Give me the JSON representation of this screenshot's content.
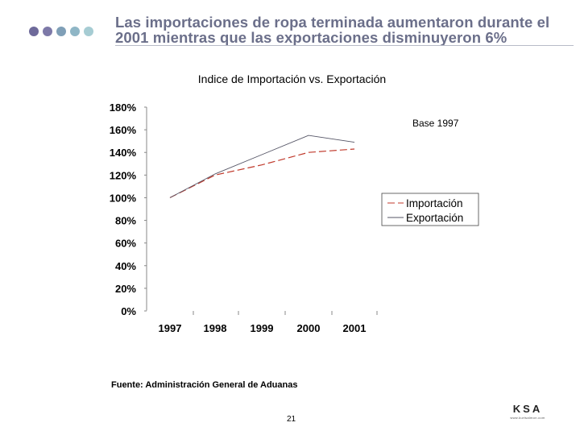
{
  "slide": {
    "title": "Las importaciones de ropa terminada aumentaron durante el 2001 mientras que las exportaciones disminuyeron 6%",
    "source": "Fuente: Administración General de Aduanas",
    "page_number": "21",
    "logo_text": "KSA",
    "logo_subtext": "www.kurtsalmon.com",
    "bullet_colors": [
      "#6e6a9a",
      "#7d79a8",
      "#7f9fb7",
      "#8fb6c6",
      "#a6ccd3"
    ],
    "title_color": "#6b6f8a"
  },
  "chart_data": {
    "type": "line",
    "title": "Indice de Importación vs. Exportación",
    "annotation": "Base 1997",
    "categories": [
      "1997",
      "1998",
      "1999",
      "2000",
      "2001"
    ],
    "series": [
      {
        "name": "Importación",
        "values": [
          100,
          120,
          129,
          140,
          143
        ],
        "color": "#c0392b",
        "dash": "dashed"
      },
      {
        "name": "Exportación",
        "values": [
          100,
          121,
          138,
          155,
          149
        ],
        "color": "#555566",
        "dash": "solid"
      }
    ],
    "ylim": [
      0,
      180
    ],
    "yticks": [
      "0%",
      "20%",
      "40%",
      "60%",
      "80%",
      "100%",
      "120%",
      "140%",
      "160%",
      "180%"
    ],
    "ytick_values": [
      0,
      20,
      40,
      60,
      80,
      100,
      120,
      140,
      160,
      180
    ],
    "grid": false,
    "legend_position": "right"
  }
}
